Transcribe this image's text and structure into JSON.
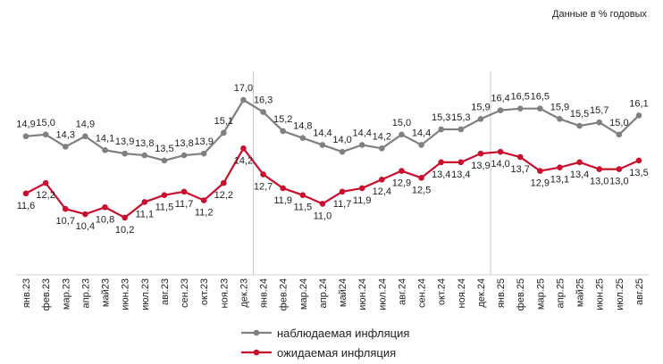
{
  "note": "Данные в % годовых",
  "chart_data": {
    "type": "line",
    "title": "",
    "xlabel": "",
    "ylabel": "",
    "grid": false,
    "legend_placement": "bottom",
    "categories": [
      "янв.23",
      "фев.23",
      "мар.23",
      "апр.23",
      "май23",
      "июн.23",
      "июл.23",
      "авг.23",
      "сен.23",
      "окт.23",
      "ноя.23",
      "дек.23",
      "янв.24",
      "фев.24",
      "мар.24",
      "апр.24",
      "май24",
      "июн.24",
      "июл.24",
      "авг.24",
      "сен.24",
      "окт.24",
      "ноя.24",
      "дек.24",
      "янв.25",
      "фев.25",
      "мар.25",
      "апр.25",
      "май25",
      "июн.25",
      "июл.25",
      "авг.25"
    ],
    "series": [
      {
        "name": "наблюдаемая инфляция",
        "color": "#808080",
        "label_position": "above",
        "values": [
          14.9,
          15.0,
          14.3,
          14.9,
          14.1,
          13.9,
          13.8,
          13.5,
          13.8,
          13.9,
          15.1,
          17.0,
          16.3,
          15.2,
          14.8,
          14.4,
          14.0,
          14.4,
          14.2,
          15.0,
          14.4,
          15.3,
          15.3,
          15.9,
          16.4,
          16.5,
          16.5,
          15.9,
          15.5,
          15.7,
          15.0,
          16.1
        ]
      },
      {
        "name": "ожидаемая инфляция",
        "color": "#c8102e",
        "label_position": "below",
        "values": [
          11.6,
          12.2,
          10.7,
          10.4,
          10.8,
          10.2,
          11.1,
          11.5,
          11.7,
          11.2,
          12.2,
          14.2,
          12.7,
          11.9,
          11.5,
          11.0,
          11.7,
          11.9,
          12.4,
          12.9,
          12.5,
          13.4,
          13.4,
          13.9,
          14.0,
          13.7,
          12.9,
          13.1,
          13.4,
          13.0,
          13.0,
          13.5
        ]
      }
    ],
    "year_separators_after": [
      "дек.23",
      "дек.24"
    ],
    "decimal_separator": ","
  }
}
